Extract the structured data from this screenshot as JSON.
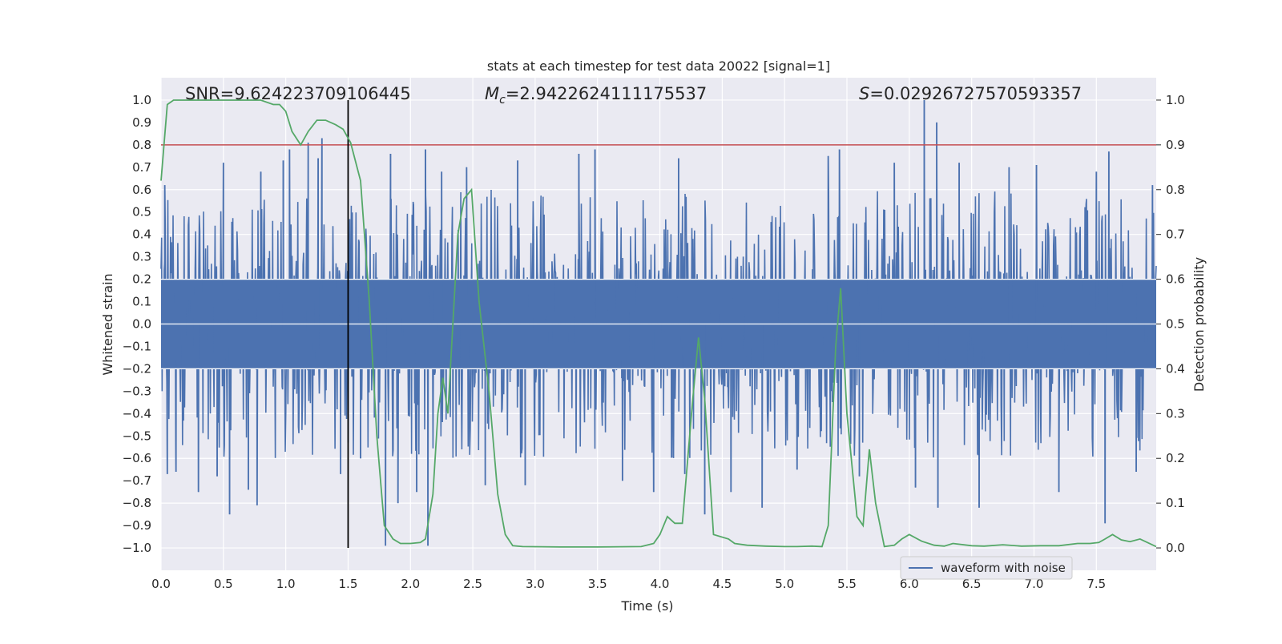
{
  "chart_data": {
    "type": "line",
    "title": "stats at each timestep for test data 20022 [signal=1]",
    "xlabel": "Time (s)",
    "ylabel_left": "Whitened strain",
    "ylabel_right": "Detection probability",
    "xlim": [
      0.0,
      7.98
    ],
    "ylim_left": [
      -1.1,
      1.1
    ],
    "ylim_right": [
      -0.05,
      1.05
    ],
    "x_ticks": [
      "0.0",
      "0.5",
      "1.0",
      "1.5",
      "2.0",
      "2.5",
      "3.0",
      "3.5",
      "4.0",
      "4.5",
      "5.0",
      "5.5",
      "6.0",
      "6.5",
      "7.0",
      "7.5"
    ],
    "x_tick_values": [
      0.0,
      0.5,
      1.0,
      1.5,
      2.0,
      2.5,
      3.0,
      3.5,
      4.0,
      4.5,
      5.0,
      5.5,
      6.0,
      6.5,
      7.0,
      7.5
    ],
    "y_left_ticks": [
      "1.0",
      "0.9",
      "0.8",
      "0.7",
      "0.6",
      "0.5",
      "0.4",
      "0.3",
      "0.2",
      "0.1",
      "0.0",
      "−0.1",
      "−0.2",
      "−0.3",
      "−0.4",
      "−0.5",
      "−0.6",
      "−0.7",
      "−0.8",
      "−0.9",
      "−1.0"
    ],
    "y_left_tick_values": [
      1.0,
      0.9,
      0.8,
      0.7,
      0.6,
      0.5,
      0.4,
      0.3,
      0.2,
      0.1,
      0.0,
      -0.1,
      -0.2,
      -0.3,
      -0.4,
      -0.5,
      -0.6,
      -0.7,
      -0.8,
      -0.9,
      -1.0
    ],
    "y_right_ticks": [
      "1.0",
      "0.9",
      "0.8",
      "0.7",
      "0.6",
      "0.5",
      "0.4",
      "0.3",
      "0.2",
      "0.1",
      "0.0"
    ],
    "y_right_tick_values": [
      1.0,
      0.9,
      0.8,
      0.7,
      0.6,
      0.5,
      0.4,
      0.3,
      0.2,
      0.1,
      0.0
    ],
    "grid": true,
    "legend": {
      "placement": "lower-right",
      "entries": [
        "waveform with noise"
      ]
    },
    "annotations": {
      "snr": "SNR=9.624223709106445",
      "mc_symbol": "M",
      "mc_sub": "c",
      "mc_value": "=2.9422624111175537",
      "s_symbol": "S",
      "s_value": "=0.02926727570593357"
    },
    "threshold": {
      "value": 0.9,
      "axis": "right",
      "color": "#c44e52"
    },
    "vline": {
      "x": 1.5,
      "y_range": [
        -1.0,
        1.0
      ],
      "color": "#000000"
    },
    "series": [
      {
        "name": "waveform with noise",
        "axis": "left",
        "color": "#4c72b0",
        "envelope": {
          "typical_abs_max": 0.4,
          "peaks": [
            {
              "x": 0.03,
              "y": 0.62
            },
            {
              "x": 0.05,
              "y": -0.67
            },
            {
              "x": 0.12,
              "y": -0.66
            },
            {
              "x": 0.3,
              "y": -0.75
            },
            {
              "x": 0.45,
              "y": -0.68
            },
            {
              "x": 0.5,
              "y": 0.72
            },
            {
              "x": 0.55,
              "y": -0.85
            },
            {
              "x": 0.7,
              "y": -0.74
            },
            {
              "x": 0.77,
              "y": -0.81
            },
            {
              "x": 0.8,
              "y": 0.68
            },
            {
              "x": 0.98,
              "y": 0.73
            },
            {
              "x": 1.03,
              "y": 0.78
            },
            {
              "x": 1.18,
              "y": 0.81
            },
            {
              "x": 1.26,
              "y": 0.74
            },
            {
              "x": 1.29,
              "y": 0.83
            },
            {
              "x": 1.44,
              "y": -0.67
            },
            {
              "x": 1.6,
              "y": -0.6
            },
            {
              "x": 1.8,
              "y": -0.99
            },
            {
              "x": 1.84,
              "y": 0.76
            },
            {
              "x": 1.9,
              "y": -0.8
            },
            {
              "x": 2.05,
              "y": -0.75
            },
            {
              "x": 2.12,
              "y": 0.78
            },
            {
              "x": 2.14,
              "y": -0.99
            },
            {
              "x": 2.25,
              "y": 0.68
            },
            {
              "x": 2.45,
              "y": 0.7
            },
            {
              "x": 2.6,
              "y": -0.72
            },
            {
              "x": 2.86,
              "y": 0.73
            },
            {
              "x": 2.92,
              "y": -0.72
            },
            {
              "x": 3.35,
              "y": 0.76
            },
            {
              "x": 3.48,
              "y": 0.78
            },
            {
              "x": 3.7,
              "y": -0.7
            },
            {
              "x": 3.95,
              "y": -0.75
            },
            {
              "x": 4.15,
              "y": 0.74
            },
            {
              "x": 4.2,
              "y": -0.67
            },
            {
              "x": 4.36,
              "y": -0.85
            },
            {
              "x": 4.57,
              "y": -0.75
            },
            {
              "x": 4.82,
              "y": -0.82
            },
            {
              "x": 5.1,
              "y": -0.65
            },
            {
              "x": 5.35,
              "y": 0.75
            },
            {
              "x": 5.44,
              "y": 0.78
            },
            {
              "x": 5.6,
              "y": -0.68
            },
            {
              "x": 5.88,
              "y": 0.72
            },
            {
              "x": 6.05,
              "y": -0.73
            },
            {
              "x": 6.12,
              "y": 1.0
            },
            {
              "x": 6.22,
              "y": 0.9
            },
            {
              "x": 6.23,
              "y": -0.82
            },
            {
              "x": 6.4,
              "y": 0.72
            },
            {
              "x": 6.56,
              "y": -0.82
            },
            {
              "x": 6.8,
              "y": 0.7
            },
            {
              "x": 7.02,
              "y": 0.71
            },
            {
              "x": 7.2,
              "y": -0.75
            },
            {
              "x": 7.5,
              "y": 0.68
            },
            {
              "x": 7.57,
              "y": -0.89
            },
            {
              "x": 7.6,
              "y": 0.77
            },
            {
              "x": 7.82,
              "y": -0.66
            },
            {
              "x": 7.95,
              "y": 0.62
            }
          ]
        }
      },
      {
        "name": "",
        "axis": "right",
        "color": "#55a868",
        "x": [
          0.0,
          0.05,
          0.1,
          0.15,
          0.25,
          0.35,
          0.5,
          0.6,
          0.7,
          0.8,
          0.9,
          0.95,
          1.0,
          1.05,
          1.12,
          1.18,
          1.25,
          1.32,
          1.4,
          1.46,
          1.52,
          1.6,
          1.67,
          1.73,
          1.79,
          1.86,
          1.92,
          2.0,
          2.08,
          2.12,
          2.18,
          2.22,
          2.26,
          2.3,
          2.38,
          2.43,
          2.49,
          2.55,
          2.63,
          2.7,
          2.76,
          2.82,
          2.9,
          3.2,
          3.5,
          3.85,
          3.95,
          4.0,
          4.06,
          4.12,
          4.18,
          4.26,
          4.31,
          4.36,
          4.43,
          4.55,
          4.6,
          4.7,
          4.85,
          5.0,
          5.1,
          5.22,
          5.3,
          5.35,
          5.41,
          5.45,
          5.5,
          5.58,
          5.63,
          5.68,
          5.73,
          5.8,
          5.88,
          5.94,
          6.0,
          6.1,
          6.2,
          6.28,
          6.35,
          6.5,
          6.6,
          6.75,
          6.9,
          7.05,
          7.2,
          7.35,
          7.45,
          7.52,
          7.57,
          7.63,
          7.7,
          7.77,
          7.85,
          7.91,
          7.98
        ],
        "y": [
          0.82,
          0.99,
          1.0,
          1.0,
          1.0,
          1.0,
          1.0,
          1.0,
          1.0,
          1.0,
          0.99,
          0.99,
          0.975,
          0.93,
          0.9,
          0.93,
          0.955,
          0.955,
          0.945,
          0.935,
          0.905,
          0.82,
          0.55,
          0.25,
          0.05,
          0.02,
          0.01,
          0.01,
          0.012,
          0.02,
          0.12,
          0.3,
          0.38,
          0.3,
          0.7,
          0.78,
          0.8,
          0.55,
          0.35,
          0.12,
          0.03,
          0.005,
          0.003,
          0.002,
          0.002,
          0.003,
          0.01,
          0.03,
          0.07,
          0.055,
          0.055,
          0.32,
          0.47,
          0.33,
          0.03,
          0.02,
          0.01,
          0.006,
          0.004,
          0.003,
          0.003,
          0.004,
          0.003,
          0.05,
          0.45,
          0.58,
          0.3,
          0.07,
          0.05,
          0.22,
          0.1,
          0.003,
          0.006,
          0.02,
          0.03,
          0.015,
          0.006,
          0.004,
          0.01,
          0.005,
          0.004,
          0.007,
          0.004,
          0.005,
          0.005,
          0.01,
          0.01,
          0.012,
          0.02,
          0.03,
          0.018,
          0.014,
          0.02,
          0.012,
          0.003
        ]
      }
    ]
  }
}
